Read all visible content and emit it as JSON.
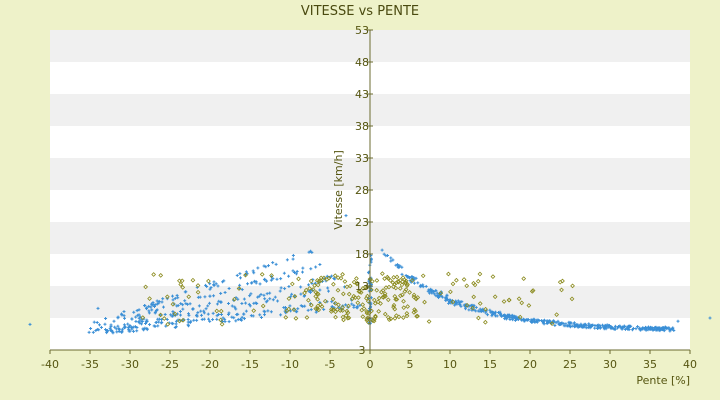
{
  "chart_data": {
    "type": "scatter",
    "title": "VITESSE vs PENTE",
    "xlabel": "Pente [%]",
    "ylabel": "Vitesse [km/h]",
    "xlim": [
      -40,
      40
    ],
    "ylim": [
      3,
      53
    ],
    "xticks": [
      -40,
      -35,
      -30,
      -25,
      -20,
      -15,
      -10,
      -5,
      0,
      5,
      10,
      15,
      20,
      25,
      30,
      35,
      40
    ],
    "yticks": [
      3,
      8,
      13,
      18,
      23,
      28,
      33,
      38,
      43,
      48,
      53
    ],
    "yticks_labeled": [
      3,
      13,
      18,
      23,
      28,
      33,
      38,
      43,
      48,
      53
    ],
    "y_axis_position": "x=0",
    "banded_background": true,
    "colors": {
      "page_bg": "#eef2c9",
      "plot_bg": "#ffffff",
      "band": "#f0f0f0",
      "axis": "#6b6b30",
      "text": "#555510",
      "series_blue": "#3a8fd6",
      "series_olive": "#8a8a1c"
    },
    "series": [
      {
        "marker": "cross",
        "color": "#3a8fd6",
        "curves_left": [
          {
            "x_end": -7.0,
            "y_end": 18.5
          },
          {
            "x_end": -5.5,
            "y_end": 16.5
          },
          {
            "x_end": -4.0,
            "y_end": 14.5
          },
          {
            "x_end": -3.0,
            "y_end": 13.0
          },
          {
            "x_end": -2.0,
            "y_end": 11.0
          },
          {
            "x_end": -1.2,
            "y_end": 10.0
          }
        ],
        "curves_right": [
          {
            "x_start": 1.2,
            "y_start": 19.0
          },
          {
            "x_start": 2.5,
            "y_start": 17.0
          },
          {
            "x_start": 3.5,
            "y_start": 15.5
          },
          {
            "x_start": 5.0,
            "y_start": 14.0
          },
          {
            "x_start": 6.5,
            "y_start": 12.5
          }
        ],
        "zero_slope_x": [
          0,
          0
        ],
        "zero_slope_y": [
          7,
          18
        ],
        "outliers": [
          {
            "x": -43.0,
            "y": 7.0
          },
          {
            "x": -34.0,
            "y": 9.5
          },
          {
            "x": -32.0,
            "y": 7.5
          },
          {
            "x": -26.0,
            "y": 10.5
          },
          {
            "x": -20.0,
            "y": 12.5
          },
          {
            "x": -19.0,
            "y": 13.0
          },
          {
            "x": -3.0,
            "y": 24.0
          },
          {
            "x": 43.0,
            "y": 8.0
          },
          {
            "x": 38.5,
            "y": 7.5
          }
        ]
      },
      {
        "marker": "diamond",
        "color": "#8a8a1c",
        "cluster_center": {
          "x": -1.0,
          "y": 11.0
        },
        "cluster_range": {
          "x": [
            -35,
            30
          ],
          "y": [
            5.5,
            15.5
          ]
        }
      }
    ]
  }
}
